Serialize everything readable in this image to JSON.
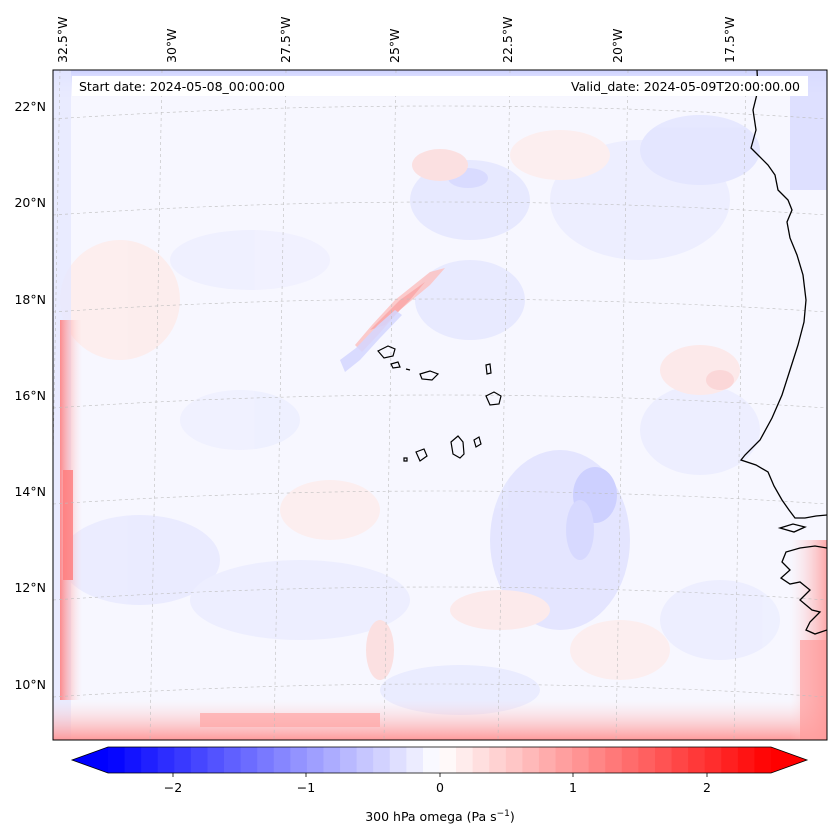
{
  "map": {
    "start_date_text": "Start date: 2024-05-08_00:00:00",
    "valid_date_text": "Valid_date: 2024-05-09T20:00:00.00",
    "lon_labels": [
      "32.5°W",
      "30°W",
      "27.5°W",
      "25°W",
      "22.5°W",
      "20°W",
      "17.5°W"
    ],
    "lat_labels": [
      "22°N",
      "20°N",
      "18°N",
      "16°N",
      "14°N",
      "12°N",
      "10°N"
    ],
    "field": "300 hPa omega",
    "gridlines": true,
    "extent": {
      "lon_min": -32.8,
      "lon_max": -16.2,
      "lat_min": 8.9,
      "lat_max": 22.8
    }
  },
  "colorbar": {
    "label_main": "300 hPa omega (Pa s",
    "label_sup": "−1",
    "label_end": ")",
    "ticks": [
      "−2",
      "−1",
      "0",
      "1",
      "2"
    ],
    "tick_values": [
      -2,
      -1,
      0,
      1,
      2
    ],
    "range": [
      -2.5,
      2.5
    ],
    "extend": "both",
    "colormap": "bwr",
    "color_min": "#0000ff",
    "color_mid": "#ffffff",
    "color_max": "#ff0000"
  }
}
